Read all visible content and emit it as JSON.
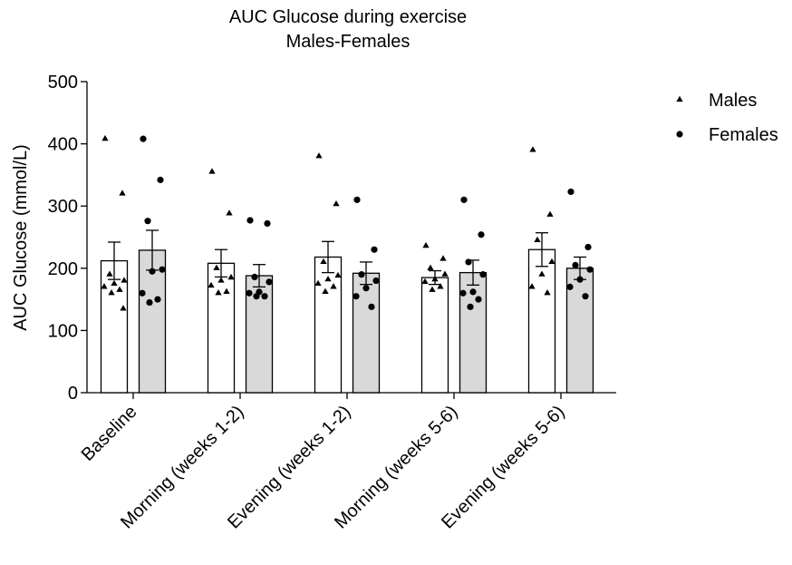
{
  "chart_data": {
    "type": "bar",
    "title": "AUC Glucose during exercise",
    "subtitle": "Males-Females",
    "xlabel": "",
    "ylabel": "AUC Glucose (mmol/L)",
    "ylim": [
      0,
      500
    ],
    "yticks": [
      0,
      100,
      200,
      300,
      400,
      500
    ],
    "categories": [
      "Baseline",
      "Morning (weeks 1-2)",
      "Evening (weeks 1-2)",
      "Morning (weeks 5-6)",
      "Evening (weeks 5-6)"
    ],
    "series": [
      {
        "name": "Males",
        "marker": "triangle",
        "fill": "#ffffff",
        "means": [
          212,
          208,
          218,
          185,
          230
        ],
        "sem": [
          30,
          22,
          25,
          11,
          27
        ],
        "points": [
          [
            408,
            320,
            190,
            180,
            175,
            170,
            165,
            160,
            135
          ],
          [
            355,
            288,
            200,
            185,
            180,
            172,
            162,
            160
          ],
          [
            380,
            303,
            210,
            188,
            182,
            175,
            170,
            162
          ],
          [
            236,
            215,
            200,
            190,
            182,
            178,
            170,
            165
          ],
          [
            390,
            286,
            245,
            210,
            190,
            170,
            160
          ]
        ]
      },
      {
        "name": "Females",
        "marker": "circle",
        "fill": "#d9d9d9",
        "means": [
          229,
          188,
          192,
          193,
          200
        ],
        "sem": [
          32,
          18,
          18,
          20,
          18
        ],
        "points": [
          [
            408,
            342,
            276,
            198,
            195,
            160,
            150,
            145
          ],
          [
            277,
            272,
            186,
            178,
            162,
            160,
            155,
            155
          ],
          [
            310,
            230,
            190,
            180,
            168,
            155,
            138
          ],
          [
            310,
            254,
            210,
            190,
            162,
            160,
            150,
            138
          ],
          [
            323,
            234,
            205,
            198,
            182,
            170,
            155
          ]
        ]
      }
    ],
    "legend": {
      "placement": "right",
      "entries": [
        {
          "label": "Males",
          "marker": "triangle"
        },
        {
          "label": "Females",
          "marker": "circle"
        }
      ]
    },
    "grid": false
  }
}
